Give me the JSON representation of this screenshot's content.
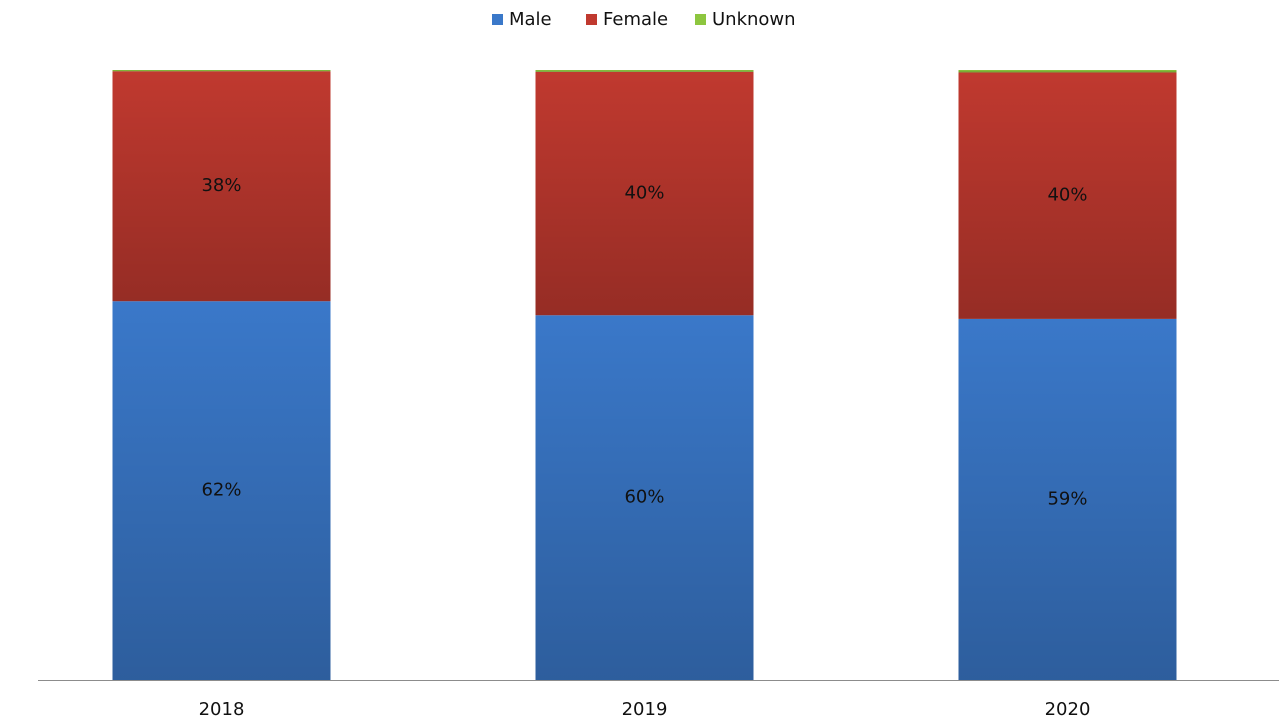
{
  "chart_data": {
    "type": "stacked_bar",
    "categories": [
      "2018",
      "2019",
      "2020"
    ],
    "series": [
      {
        "name": "Male",
        "color": "#3a78c9",
        "values": [
          62.1,
          59.8,
          59.2
        ],
        "value_labels": [
          "62%",
          "60%",
          "59%"
        ]
      },
      {
        "name": "Female",
        "color": "#c0392f",
        "values": [
          37.7,
          39.9,
          40.4
        ],
        "value_labels": [
          "38%",
          "40%",
          "40%"
        ]
      },
      {
        "name": "Unknown",
        "color": "#8dc63f",
        "values": [
          0.2,
          0.3,
          0.4
        ]
      }
    ],
    "ylim": [
      0,
      100
    ],
    "legend": "top"
  }
}
